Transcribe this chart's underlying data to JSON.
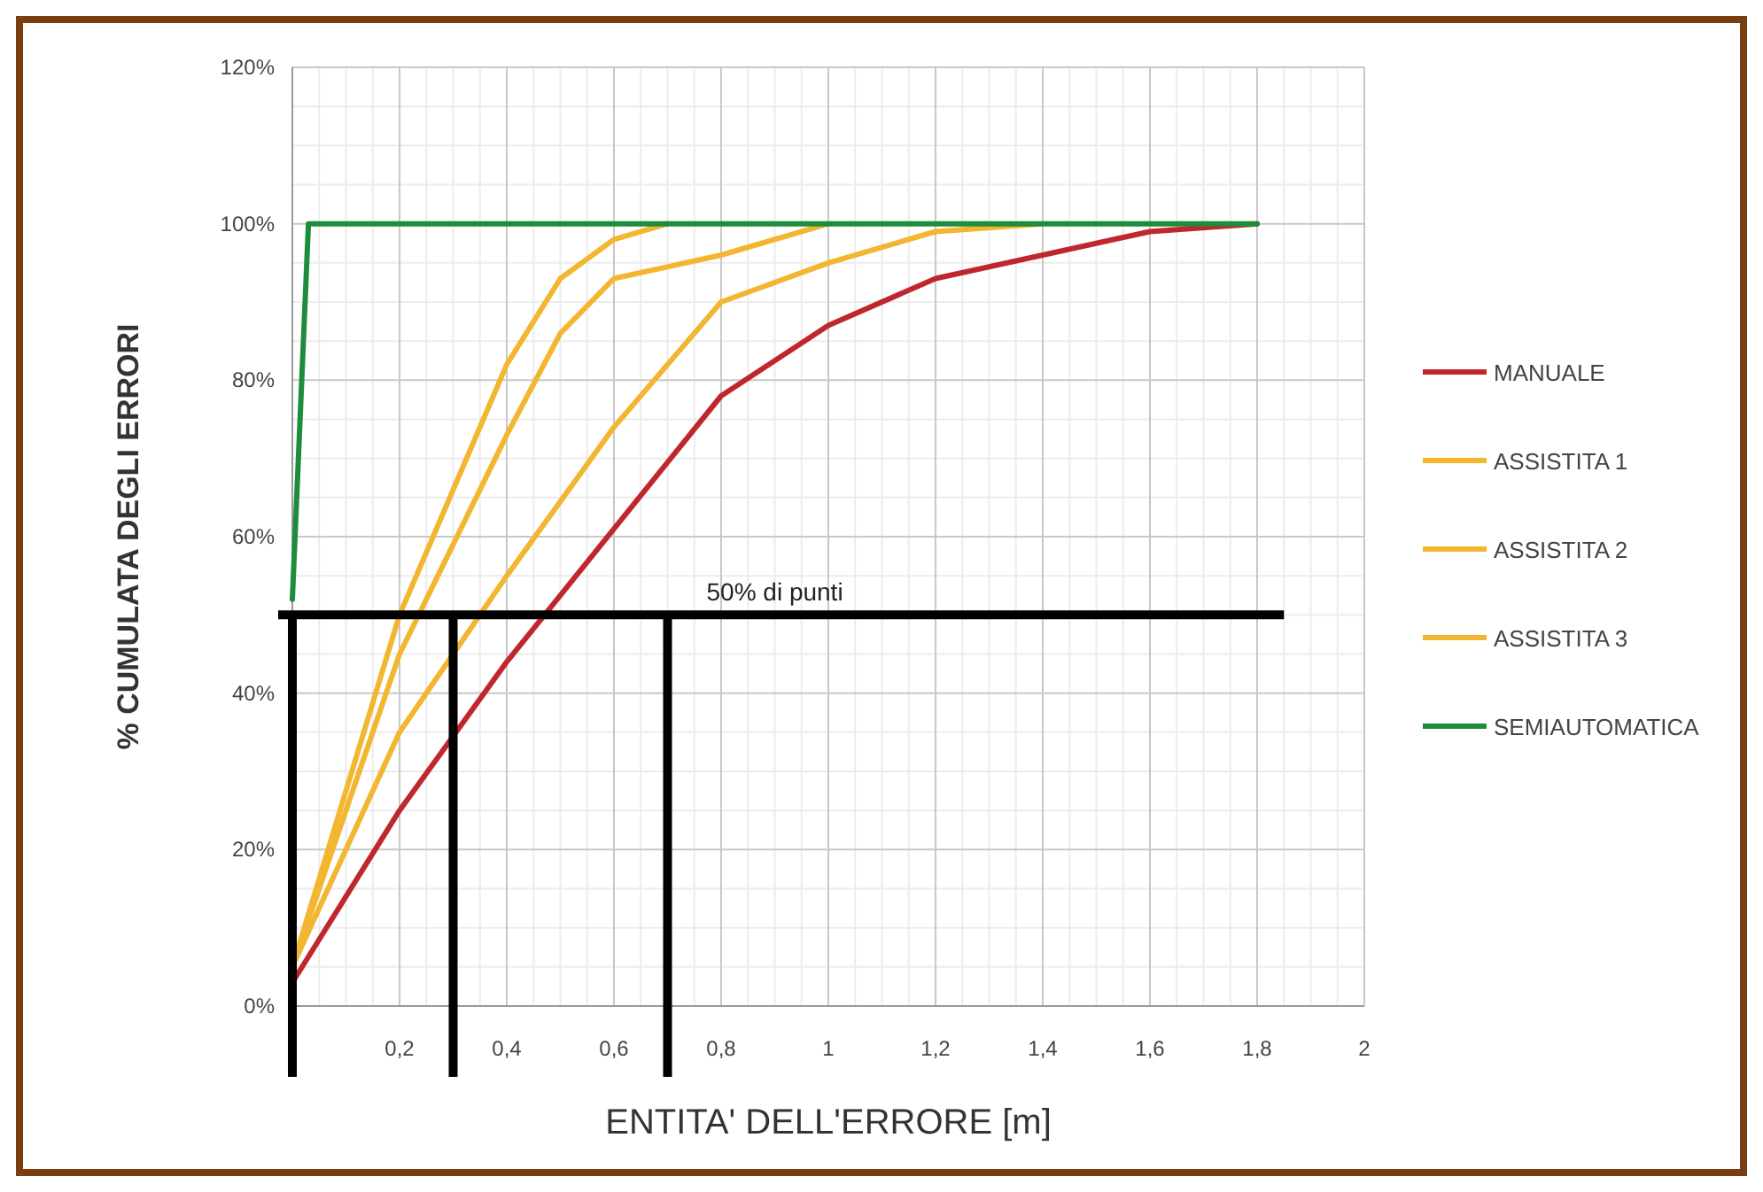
{
  "chart_data": {
    "type": "line",
    "xlabel": "ENTITA' DELL'ERRORE [m]",
    "ylabel": "% CUMULATA DEGLI ERRORI",
    "xlim": [
      0,
      2
    ],
    "ylim": [
      0,
      120
    ],
    "xticks": [
      {
        "value": 0,
        "label": null
      },
      {
        "value": 0.2,
        "label": "0,2"
      },
      {
        "value": 0.4,
        "label": "0,4"
      },
      {
        "value": 0.6,
        "label": "0,6"
      },
      {
        "value": 0.8,
        "label": "0,8"
      },
      1,
      {
        "value": 1.2,
        "label": "1,2"
      },
      {
        "value": 1.4,
        "label": "1,4"
      },
      {
        "value": 1.6,
        "label": "1,6"
      },
      {
        "value": 1.8,
        "label": "1,8"
      },
      2
    ],
    "yticks": [
      {
        "value": 0,
        "label": "0%"
      },
      {
        "value": 20,
        "label": "20%"
      },
      {
        "value": 40,
        "label": "40%"
      },
      {
        "value": 60,
        "label": "60%"
      },
      {
        "value": 80,
        "label": "80%"
      },
      {
        "value": 100,
        "label": "100%"
      },
      {
        "value": 120,
        "label": "120%"
      }
    ],
    "grid": true,
    "legend": "right",
    "marker": "none",
    "line_style": "solid",
    "series": [
      {
        "name": "MANUALE",
        "color": "#c0272d",
        "x": [
          0,
          0.2,
          0.4,
          0.6,
          0.8,
          1,
          1.2,
          1.4,
          1.6,
          1.8
        ],
        "values": [
          3,
          25,
          44,
          61,
          78,
          87,
          93,
          96,
          99,
          100
        ]
      },
      {
        "name": "ASSISTITA 1",
        "color": "#f2b630",
        "x": [
          0,
          0.2,
          0.4,
          0.5,
          0.6,
          0.7
        ],
        "values": [
          5,
          50,
          82,
          93,
          98,
          100
        ]
      },
      {
        "name": "ASSISTITA 2",
        "color": "#f2b630",
        "x": [
          0,
          0.2,
          0.4,
          0.5,
          0.6,
          0.8,
          1
        ],
        "values": [
          5,
          45,
          73,
          86,
          93,
          96,
          100
        ]
      },
      {
        "name": "ASSISTITA 3",
        "color": "#f2b630",
        "x": [
          0,
          0.2,
          0.4,
          0.6,
          0.8,
          1,
          1.2,
          1.4
        ],
        "values": [
          5,
          35,
          55,
          74,
          90,
          95,
          99,
          100
        ]
      },
      {
        "name": "SEMIAUTOMATICA",
        "color": "#1e8c3a",
        "x": [
          0,
          0.03,
          1.8
        ],
        "values": [
          52,
          100,
          100
        ]
      }
    ],
    "ref_lines": [
      {
        "axis": "y",
        "value": 50,
        "label": "50% di punti",
        "color": "#000000"
      },
      {
        "axis": "x",
        "value": 0,
        "color": "#000000"
      },
      {
        "axis": "x",
        "value": 0.3,
        "color": "#000000"
      },
      {
        "axis": "x",
        "value": 0.7,
        "color": "#000000"
      }
    ]
  }
}
